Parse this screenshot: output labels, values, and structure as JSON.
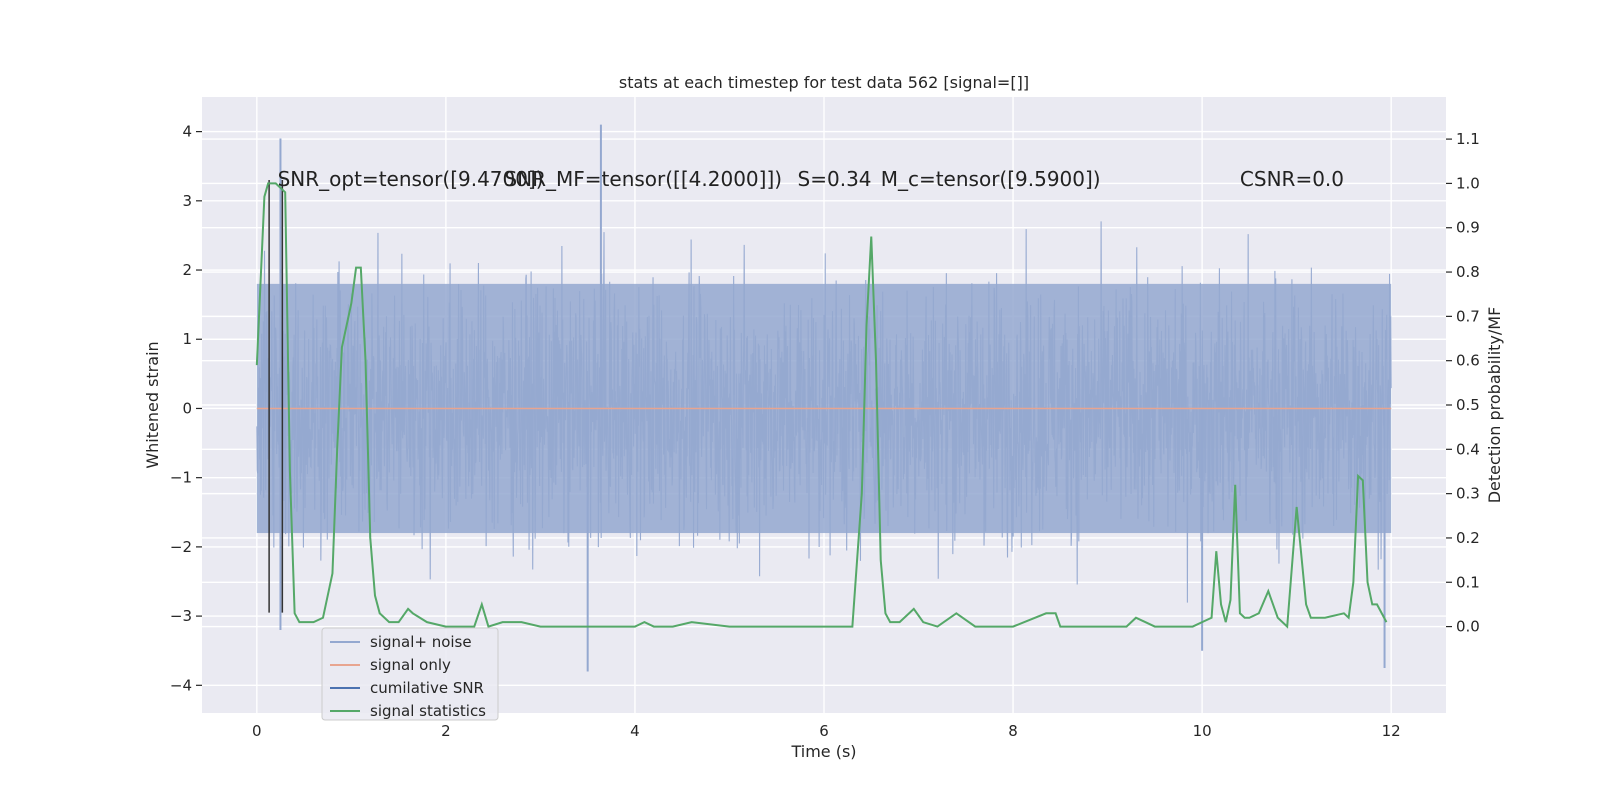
{
  "chart_data": {
    "type": "line",
    "title": "stats at each timestep for test data 562 [signal=[]]",
    "xlabel": "Time (s)",
    "ylabel": "Whitened strain",
    "y2label": "Detection probability/MF",
    "xlim": [
      -0.58,
      12.58
    ],
    "ylim": [
      -4.4,
      4.5
    ],
    "y2lim": [
      -0.195,
      1.195
    ],
    "x_ticks": [
      0,
      2,
      4,
      6,
      8,
      10,
      12
    ],
    "x_tick_labels": [
      "0",
      "2",
      "4",
      "6",
      "8",
      "10",
      "12"
    ],
    "y_ticks": [
      -4,
      -3,
      -2,
      -1,
      0,
      1,
      2,
      3,
      4
    ],
    "y_tick_labels": [
      "−4",
      "−3",
      "−2",
      "−1",
      "0",
      "1",
      "2",
      "3",
      "4"
    ],
    "y2_ticks": [
      0.0,
      0.1,
      0.2,
      0.3,
      0.4,
      0.5,
      0.6,
      0.7,
      0.8,
      0.9,
      1.0,
      1.1
    ],
    "y2_tick_labels": [
      "0.0",
      "0.1",
      "0.2",
      "0.3",
      "0.4",
      "0.5",
      "0.6",
      "0.7",
      "0.8",
      "0.9",
      "1.0",
      "1.1"
    ],
    "grid": true,
    "legend_position": "lower-left",
    "annotations": [
      {
        "text": "SNR_opt=tensor([9.4700])",
        "x": 0.22,
        "y": 3.3
      },
      {
        "text": "SNR_MF=tensor([[4.2000]])",
        "x": 2.62,
        "y": 3.3
      },
      {
        "text": "S=0.34",
        "x": 5.72,
        "y": 3.3
      },
      {
        "text": "M_c=tensor([9.5900])",
        "x": 6.6,
        "y": 3.3
      },
      {
        "text": "CSNR=0.0",
        "x": 10.4,
        "y": 3.3
      }
    ],
    "series": [
      {
        "name": "signal+ noise",
        "axis": "left",
        "color": "#94a8d0",
        "x_range": [
          0,
          12
        ],
        "typical_peak_to_peak": [
          -1.8,
          1.8
        ],
        "extremes": [
          {
            "x": 0.25,
            "y": 3.9
          },
          {
            "x": 0.25,
            "y": -3.2
          },
          {
            "x": 3.64,
            "y": 4.1
          },
          {
            "x": 3.5,
            "y": -3.8
          },
          {
            "x": 11.93,
            "y": -3.75
          },
          {
            "x": 10.0,
            "y": -3.5
          }
        ]
      },
      {
        "name": "signal only",
        "axis": "left",
        "color": "#e8a590",
        "x": [
          0,
          12
        ],
        "y": [
          0,
          0
        ]
      },
      {
        "name": "cumilative SNR",
        "axis": "left",
        "color": "#4c72b0",
        "x": [],
        "y": []
      },
      {
        "name": "signal statistics",
        "axis": "right",
        "color": "#55a868",
        "x": [
          0.0,
          0.08,
          0.12,
          0.2,
          0.3,
          0.35,
          0.4,
          0.45,
          0.5,
          0.6,
          0.7,
          0.8,
          0.85,
          0.9,
          0.95,
          1.0,
          1.05,
          1.1,
          1.15,
          1.2,
          1.25,
          1.3,
          1.4,
          1.5,
          1.6,
          1.65,
          1.8,
          2.0,
          2.1,
          2.3,
          2.38,
          2.45,
          2.6,
          2.8,
          3.0,
          3.5,
          4.0,
          4.1,
          4.2,
          4.4,
          4.6,
          5.0,
          5.5,
          6.0,
          6.3,
          6.4,
          6.45,
          6.5,
          6.55,
          6.6,
          6.65,
          6.7,
          6.8,
          6.95,
          7.05,
          7.2,
          7.4,
          7.6,
          8.0,
          8.35,
          8.45,
          8.5,
          8.8,
          9.2,
          9.3,
          9.5,
          9.9,
          10.0,
          10.1,
          10.15,
          10.2,
          10.25,
          10.3,
          10.35,
          10.4,
          10.45,
          10.5,
          10.6,
          10.7,
          10.8,
          10.9,
          11.0,
          11.1,
          11.15,
          11.2,
          11.3,
          11.5,
          11.55,
          11.6,
          11.65,
          11.7,
          11.75,
          11.8,
          11.85,
          11.95
        ],
        "y": [
          0.59,
          0.97,
          1.0,
          1.0,
          0.98,
          0.35,
          0.03,
          0.01,
          0.01,
          0.01,
          0.02,
          0.12,
          0.4,
          0.63,
          0.68,
          0.73,
          0.81,
          0.81,
          0.6,
          0.2,
          0.07,
          0.03,
          0.01,
          0.01,
          0.04,
          0.03,
          0.01,
          0.0,
          0.0,
          0.0,
          0.05,
          0.0,
          0.01,
          0.01,
          0.0,
          0.0,
          0.0,
          0.01,
          0.0,
          0.0,
          0.01,
          0.0,
          0.0,
          0.0,
          0.0,
          0.3,
          0.68,
          0.88,
          0.6,
          0.15,
          0.03,
          0.01,
          0.01,
          0.04,
          0.01,
          0.0,
          0.03,
          0.0,
          0.0,
          0.03,
          0.03,
          0.0,
          0.0,
          0.0,
          0.02,
          0.0,
          0.0,
          0.01,
          0.02,
          0.17,
          0.05,
          0.01,
          0.06,
          0.32,
          0.03,
          0.02,
          0.02,
          0.03,
          0.08,
          0.02,
          0.0,
          0.27,
          0.05,
          0.02,
          0.02,
          0.02,
          0.03,
          0.02,
          0.1,
          0.34,
          0.33,
          0.1,
          0.05,
          0.05,
          0.01
        ]
      }
    ],
    "vertical_lines": [
      {
        "x": 0.13,
        "y_from": -2.95,
        "y_to": 3.3,
        "color": "#333333"
      },
      {
        "x": 0.27,
        "y_from": -2.95,
        "y_to": 3.3,
        "color": "#333333"
      }
    ]
  }
}
